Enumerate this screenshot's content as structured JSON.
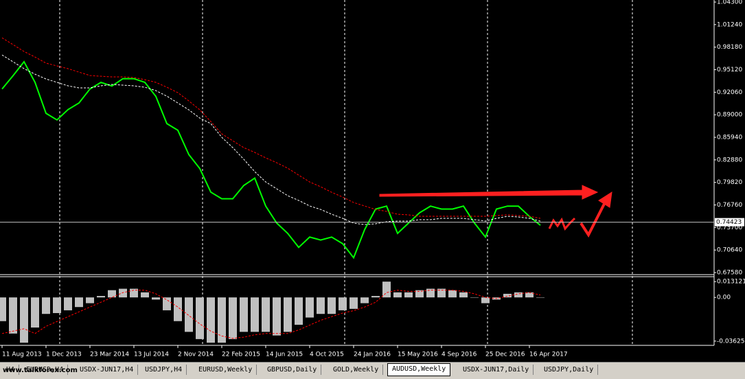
{
  "chart_data": [
    {
      "type": "line",
      "ylim": [
        0.673,
        1.0458
      ],
      "yticks": [
        {
          "value": 1.043,
          "label": "1.04300"
        },
        {
          "value": 1.0124,
          "label": "1.01240"
        },
        {
          "value": 0.9818,
          "label": "0.98180"
        },
        {
          "value": 0.9512,
          "label": "0.95120"
        },
        {
          "value": 0.9206,
          "label": "0.92060"
        },
        {
          "value": 0.89,
          "label": "0.89000"
        },
        {
          "value": 0.8594,
          "label": "0.85940"
        },
        {
          "value": 0.8288,
          "label": "0.82880"
        },
        {
          "value": 0.7982,
          "label": "0.79820"
        },
        {
          "value": 0.7676,
          "label": "0.76760"
        },
        {
          "value": 0.737,
          "label": "0.73700"
        },
        {
          "value": 0.7064,
          "label": "0.70640"
        },
        {
          "value": 0.6758,
          "label": "0.67580"
        }
      ],
      "price_line": 0.74423,
      "series": [
        {
          "color": "#00ff00",
          "style": "solid",
          "values": [
            0.925,
            0.943,
            0.962,
            0.934,
            0.892,
            0.883,
            0.897,
            0.906,
            0.925,
            0.934,
            0.929,
            0.939,
            0.939,
            0.934,
            0.915,
            0.878,
            0.869,
            0.836,
            0.817,
            0.785,
            0.776,
            0.776,
            0.794,
            0.804,
            0.766,
            0.743,
            0.729,
            0.71,
            0.724,
            0.72,
            0.724,
            0.715,
            0.696,
            0.734,
            0.762,
            0.766,
            0.729,
            0.743,
            0.757,
            0.766,
            0.762,
            0.762,
            0.766,
            0.743,
            0.724,
            0.762,
            0.766,
            0.766,
            0.752,
            0.74
          ]
        },
        {
          "color": "#ff0000",
          "style": "dashed",
          "values": [
            0.9945,
            0.9852,
            0.9759,
            0.9684,
            0.9601,
            0.9563,
            0.9526,
            0.9479,
            0.9433,
            0.9423,
            0.9414,
            0.9414,
            0.9405,
            0.9377,
            0.934,
            0.9274,
            0.92,
            0.9088,
            0.8967,
            0.8808,
            0.8641,
            0.8547,
            0.8454,
            0.8389,
            0.8315,
            0.8249,
            0.8175,
            0.8081,
            0.7988,
            0.7923,
            0.7848,
            0.7783,
            0.7709,
            0.7662,
            0.7615,
            0.7588,
            0.755,
            0.7541,
            0.7522,
            0.7522,
            0.7522,
            0.7522,
            0.7522,
            0.7522,
            0.7522,
            0.7532,
            0.7541,
            0.7532,
            0.7522,
            0.7494
          ]
        },
        {
          "color": "#ffffff",
          "style": "dashed",
          "values": [
            0.9712,
            0.9619,
            0.9526,
            0.9451,
            0.9386,
            0.934,
            0.9293,
            0.9265,
            0.9265,
            0.9293,
            0.9312,
            0.9302,
            0.9293,
            0.9274,
            0.9228,
            0.9153,
            0.906,
            0.8967,
            0.8855,
            0.878,
            0.8594,
            0.8454,
            0.8296,
            0.8128,
            0.7988,
            0.7895,
            0.7802,
            0.7737,
            0.7662,
            0.7615,
            0.755,
            0.7494,
            0.7429,
            0.741,
            0.742,
            0.7448,
            0.7457,
            0.7457,
            0.7476,
            0.7476,
            0.7494,
            0.7494,
            0.7494,
            0.7476,
            0.7457,
            0.7494,
            0.7522,
            0.7513,
            0.7494,
            0.7457
          ]
        }
      ]
    },
    {
      "type": "bar",
      "ylim": [
        -0.0398,
        0.0172
      ],
      "yticks": [
        {
          "value": 0.013121,
          "label": "0.013121"
        },
        {
          "value": 0,
          "label": "0.00"
        },
        {
          "value": -0.036258,
          "label": "-0.036258"
        }
      ],
      "categories": [
        "11 Aug 2013",
        null,
        null,
        null,
        "1 Dec 2013",
        null,
        null,
        null,
        "23 Mar 2014",
        null,
        null,
        null,
        "13 Jul 2014",
        null,
        null,
        null,
        "2 Nov 2014",
        null,
        null,
        null,
        "22 Feb 2015",
        null,
        null,
        null,
        "14 Jun 2015",
        null,
        null,
        null,
        "4 Oct 2015",
        null,
        null,
        null,
        "24 Jan 2016",
        null,
        null,
        null,
        "15 May 2016",
        null,
        null,
        null,
        "4 Sep 2016",
        null,
        null,
        null,
        "25 Dec 2016",
        null,
        null,
        null,
        "16 Apr 2017",
        null
      ],
      "series": [
        {
          "color": "#c0c0c0",
          "style": "histogram",
          "values": [
            -0.0197,
            -0.03,
            -0.0376,
            -0.025,
            -0.0137,
            -0.013,
            -0.0107,
            -0.008,
            -0.0048,
            0.0012,
            0.006,
            0.0072,
            0.0072,
            0.0042,
            -0.0018,
            -0.0107,
            -0.0197,
            -0.0286,
            -0.0346,
            -0.0376,
            -0.0376,
            -0.0346,
            -0.0286,
            -0.0286,
            -0.0286,
            -0.0316,
            -0.0286,
            -0.0227,
            -0.0167,
            -0.0137,
            -0.0137,
            -0.0107,
            -0.0095,
            -0.0048,
            0.0012,
            0.0131,
            0.0042,
            0.0042,
            0.006,
            0.0072,
            0.0072,
            0.006,
            0.0042,
            0,
            -0.0048,
            -0.0018,
            0.003,
            0.0042,
            0.0042,
            0
          ]
        },
        {
          "color": "#ff0000",
          "style": "dashed",
          "values": [
            -0.03,
            -0.028,
            -0.026,
            -0.03,
            -0.024,
            -0.02,
            -0.016,
            -0.012,
            -0.008,
            -0.004,
            0,
            0.004,
            0.006,
            0.006,
            0.003,
            -0.002,
            -0.008,
            -0.015,
            -0.022,
            -0.028,
            -0.032,
            -0.034,
            -0.033,
            -0.031,
            -0.03,
            -0.03,
            -0.03,
            -0.027,
            -0.023,
            -0.019,
            -0.016,
            -0.013,
            -0.011,
            -0.008,
            -0.004,
            0.004,
            0.006,
            0.005,
            0.005,
            0.006,
            0.006,
            0.006,
            0.005,
            0.003,
            0,
            -0.001,
            0.001,
            0.003,
            0.004,
            0.002
          ]
        }
      ]
    }
  ],
  "tabs": [
    "H4",
    "EURUSD,H4",
    "USDX-JUN17,H4",
    "USDJPY,H4",
    "EURUSD,Weekly",
    "GBPUSD,Daily",
    "GOLD,Weekly",
    "AUDUSD,Weekly",
    "USDX-JUN17,Daily",
    "USDJPY,Daily"
  ],
  "active_tab": 7,
  "watermark": "www.talkforex.com"
}
